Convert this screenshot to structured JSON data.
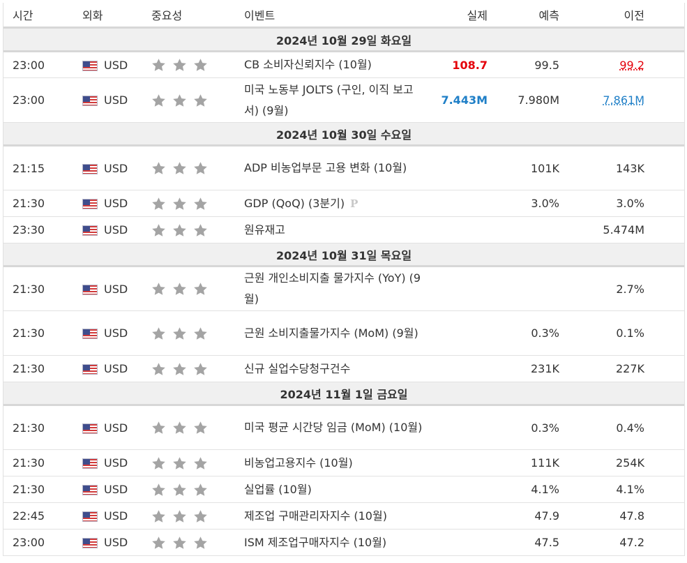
{
  "headers": {
    "time": "시간",
    "currency": "외화",
    "importance": "중요성",
    "event": "이벤트",
    "actual": "실제",
    "forecast": "예측",
    "previous": "이전"
  },
  "icons": {
    "flag": "us-flag-icon",
    "star": "star-icon",
    "preliminary": "preliminary-icon"
  },
  "colors": {
    "actual_up": "#e4000a",
    "actual_down": "#1f7fc7",
    "star": "#a4a4a4"
  },
  "importance_stars": 3,
  "rows": [
    {
      "type": "date",
      "label": "2024년 10월 29일 화요일"
    },
    {
      "type": "event",
      "time": "23:00",
      "currency": "USD",
      "event": "CB 소비자신뢰지수 (10월)",
      "actual": "108.7",
      "actual_style": "red",
      "forecast": "99.5",
      "previous": "99.2",
      "previous_style": "u-red"
    },
    {
      "type": "event",
      "time": "23:00",
      "currency": "USD",
      "event": "미국 노동부 JOLTS (구인, 이직 보고서) (9월)",
      "actual": "7.443M",
      "actual_style": "blue",
      "forecast": "7.980M",
      "previous": "7.861M",
      "previous_style": "u-blue"
    },
    {
      "type": "date",
      "label": "2024년 10월 30일 수요일"
    },
    {
      "type": "event",
      "time": "21:15",
      "currency": "USD",
      "event": "ADP 비농업부문 고용 변화 (10월)",
      "actual": "",
      "forecast": "101K",
      "previous": "143K"
    },
    {
      "type": "event",
      "time": "21:30",
      "currency": "USD",
      "event": "GDP (QoQ) (3분기)",
      "preliminary": "P",
      "actual": "",
      "forecast": "3.0%",
      "previous": "3.0%"
    },
    {
      "type": "event",
      "time": "23:30",
      "currency": "USD",
      "event": "원유재고",
      "actual": "",
      "forecast": "",
      "previous": "5.474M"
    },
    {
      "type": "date",
      "label": "2024년 10월 31일 목요일"
    },
    {
      "type": "event",
      "time": "21:30",
      "currency": "USD",
      "event": "근원 개인소비지출 물가지수 (YoY) (9월)",
      "actual": "",
      "forecast": "",
      "previous": "2.7%"
    },
    {
      "type": "event",
      "time": "21:30",
      "currency": "USD",
      "event": "근원 소비지출물가지수 (MoM) (9월)",
      "actual": "",
      "forecast": "0.3%",
      "previous": "0.1%"
    },
    {
      "type": "event",
      "time": "21:30",
      "currency": "USD",
      "event": "신규 실업수당청구건수",
      "actual": "",
      "forecast": "231K",
      "previous": "227K"
    },
    {
      "type": "date",
      "label": "2024년 11월 1일 금요일"
    },
    {
      "type": "event",
      "time": "21:30",
      "currency": "USD",
      "event": "미국 평균 시간당 임금 (MoM) (10월)",
      "actual": "",
      "forecast": "0.3%",
      "previous": "0.4%"
    },
    {
      "type": "event",
      "time": "21:30",
      "currency": "USD",
      "event": "비농업고용지수 (10월)",
      "actual": "",
      "forecast": "111K",
      "previous": "254K"
    },
    {
      "type": "event",
      "time": "21:30",
      "currency": "USD",
      "event": "실업률 (10월)",
      "actual": "",
      "forecast": "4.1%",
      "previous": "4.1%"
    },
    {
      "type": "event",
      "time": "22:45",
      "currency": "USD",
      "event": "제조업 구매관리자지수 (10월)",
      "actual": "",
      "forecast": "47.9",
      "previous": "47.8"
    },
    {
      "type": "event",
      "time": "23:00",
      "currency": "USD",
      "event": "ISM 제조업구매자지수 (10월)",
      "actual": "",
      "forecast": "47.5",
      "previous": "47.2"
    }
  ]
}
